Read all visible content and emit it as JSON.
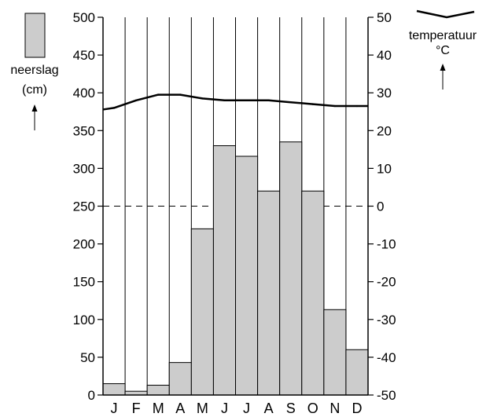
{
  "chart_data": {
    "type": "bar",
    "categories": [
      "J",
      "F",
      "M",
      "A",
      "M",
      "J",
      "J",
      "A",
      "S",
      "O",
      "N",
      "D"
    ],
    "series": [
      {
        "name": "neerslag",
        "kind": "bar",
        "axis": "left",
        "values": [
          15,
          5,
          13,
          43,
          220,
          330,
          316,
          270,
          335,
          270,
          113,
          60
        ]
      },
      {
        "name": "temperatuur",
        "kind": "line",
        "axis": "right",
        "values": [
          26,
          28,
          29.5,
          29.5,
          28.5,
          28,
          28,
          28,
          27.5,
          27,
          26.5,
          26.5
        ]
      }
    ],
    "left_axis": {
      "label": "neerslag",
      "unit": "(cm)",
      "range": [
        0,
        500
      ],
      "ticks": [
        "0",
        "50",
        "100",
        "150",
        "200",
        "250",
        "300",
        "350",
        "400",
        "450",
        "500"
      ]
    },
    "right_axis": {
      "label": "temperatuur",
      "unit": "°C",
      "range": [
        -50,
        50
      ],
      "ticks": [
        "-50",
        "-40",
        "-30",
        "-20",
        "-10",
        "0",
        "10",
        "20",
        "30",
        "40",
        "50"
      ]
    },
    "legend": {
      "placement": "top-right and top-left"
    },
    "grid": {
      "vertical": true,
      "horizontal": false,
      "dashed_zero_line": true
    },
    "colors": {
      "bar_fill": "#cccccc",
      "bar_stroke": "#000000",
      "line": "#000000",
      "axis": "#000000"
    }
  }
}
